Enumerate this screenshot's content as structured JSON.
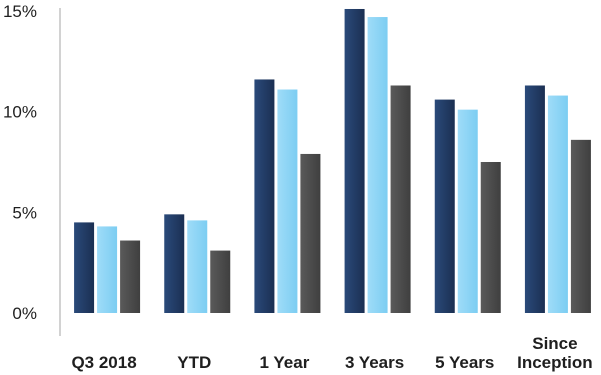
{
  "chart_data": {
    "type": "bar",
    "title": "",
    "xlabel": "",
    "ylabel": "",
    "ylim": [
      0,
      15
    ],
    "y_ticks": [
      {
        "value": 0,
        "label": "0%"
      },
      {
        "value": 5,
        "label": "5%"
      },
      {
        "value": 10,
        "label": "10%"
      },
      {
        "value": 15,
        "label": "15%"
      }
    ],
    "categories": [
      [
        "Q3 2018"
      ],
      [
        "YTD"
      ],
      [
        "1 Year"
      ],
      [
        "3 Years"
      ],
      [
        "5 Years"
      ],
      [
        "Since",
        "Inception"
      ]
    ],
    "series": [
      {
        "values": [
          4.5,
          4.9,
          11.6,
          15.1,
          10.6,
          11.3
        ],
        "color_top": "#2a4a7a",
        "color_bottom": "#1b2f52"
      },
      {
        "values": [
          4.3,
          4.6,
          11.1,
          14.7,
          10.1,
          10.8
        ],
        "color_top": "#9fdcf8",
        "color_bottom": "#7ccdf2"
      },
      {
        "values": [
          3.6,
          3.1,
          7.9,
          11.3,
          7.5,
          8.6
        ],
        "color_top": "#5a5a5a",
        "color_bottom": "#3f3f3f"
      }
    ],
    "grid": false,
    "legend": "none"
  }
}
